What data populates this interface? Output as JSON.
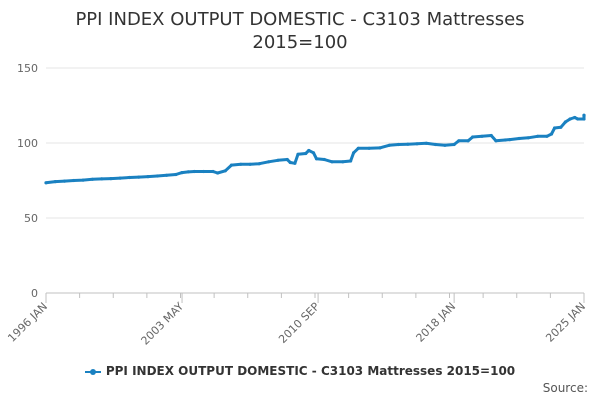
{
  "chart_data": {
    "type": "line",
    "title_line1": "PPI INDEX OUTPUT DOMESTIC - C3103 Mattresses",
    "title_line2": "2015=100",
    "xlabel": "",
    "ylabel": "",
    "x_range": [
      "1996-01",
      "2025-01"
    ],
    "ylim": [
      0,
      150
    ],
    "y_ticks": [
      0,
      50,
      100,
      150
    ],
    "x_ticks": [
      {
        "label": "1996 JAN",
        "date": "1996-01"
      },
      {
        "label": "2003 MAY",
        "date": "2003-05"
      },
      {
        "label": "2010 SEP",
        "date": "2010-09"
      },
      {
        "label": "2018 JAN",
        "date": "2018-01"
      },
      {
        "label": "2025 JAN",
        "date": "2025-01"
      }
    ],
    "grid": true,
    "legend_position": "bottom",
    "series": [
      {
        "name": "PPI INDEX OUTPUT DOMESTIC - C3103 Mattresses 2015=100",
        "color": "#1a81c1",
        "points": [
          [
            "1996-01",
            73.5
          ],
          [
            "1996-07",
            74.3
          ],
          [
            "1997-01",
            74.6
          ],
          [
            "1997-07",
            75.0
          ],
          [
            "1998-01",
            75.3
          ],
          [
            "1998-07",
            75.8
          ],
          [
            "1999-01",
            76.1
          ],
          [
            "1999-07",
            76.3
          ],
          [
            "2000-01",
            76.6
          ],
          [
            "2000-07",
            77.0
          ],
          [
            "2001-01",
            77.3
          ],
          [
            "2001-07",
            77.6
          ],
          [
            "2002-01",
            78.0
          ],
          [
            "2002-07",
            78.5
          ],
          [
            "2003-01",
            79.0
          ],
          [
            "2003-05",
            80.3
          ],
          [
            "2003-09",
            80.7
          ],
          [
            "2004-01",
            81.0
          ],
          [
            "2004-07",
            81.0
          ],
          [
            "2005-01",
            81.0
          ],
          [
            "2005-04",
            80.0
          ],
          [
            "2005-09",
            81.5
          ],
          [
            "2006-01",
            85.3
          ],
          [
            "2006-07",
            85.8
          ],
          [
            "2007-01",
            85.8
          ],
          [
            "2007-07",
            86.2
          ],
          [
            "2008-01",
            87.5
          ],
          [
            "2008-07",
            88.5
          ],
          [
            "2009-01",
            89.0
          ],
          [
            "2009-03",
            87.0
          ],
          [
            "2009-06",
            86.5
          ],
          [
            "2009-08",
            92.5
          ],
          [
            "2010-01",
            93.0
          ],
          [
            "2010-03",
            95.0
          ],
          [
            "2010-06",
            93.5
          ],
          [
            "2010-08",
            89.5
          ],
          [
            "2011-01",
            89.0
          ],
          [
            "2011-06",
            87.5
          ],
          [
            "2012-01",
            87.5
          ],
          [
            "2012-06",
            88.0
          ],
          [
            "2012-08",
            93.5
          ],
          [
            "2012-11",
            96.5
          ],
          [
            "2013-06",
            96.5
          ],
          [
            "2014-01",
            96.7
          ],
          [
            "2014-07",
            98.5
          ],
          [
            "2015-01",
            99.0
          ],
          [
            "2015-07",
            99.2
          ],
          [
            "2016-01",
            99.5
          ],
          [
            "2016-07",
            99.8
          ],
          [
            "2017-01",
            99.0
          ],
          [
            "2017-07",
            98.5
          ],
          [
            "2018-01",
            99.0
          ],
          [
            "2018-04",
            101.5
          ],
          [
            "2018-10",
            101.5
          ],
          [
            "2019-01",
            104.0
          ],
          [
            "2019-07",
            104.5
          ],
          [
            "2020-01",
            105.0
          ],
          [
            "2020-04",
            101.5
          ],
          [
            "2020-10",
            102.0
          ],
          [
            "2021-01",
            102.3
          ],
          [
            "2021-07",
            103.0
          ],
          [
            "2022-01",
            103.5
          ],
          [
            "2022-07",
            104.5
          ],
          [
            "2023-01",
            104.5
          ],
          [
            "2023-04",
            106.0
          ],
          [
            "2023-06",
            110.0
          ],
          [
            "2023-10",
            110.5
          ],
          [
            "2024-01",
            114.0
          ],
          [
            "2024-04",
            116.0
          ],
          [
            "2024-07",
            117.0
          ],
          [
            "2024-09",
            116.0
          ],
          [
            "2025-01",
            116.0
          ],
          [
            "2025-07",
            117.5
          ],
          [
            "2025-10",
            118.5
          ],
          [
            "2026-01",
            118.5
          ]
        ]
      }
    ],
    "source_label": "Source:"
  }
}
